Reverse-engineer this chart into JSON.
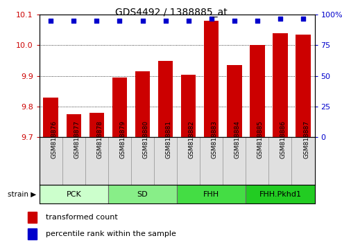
{
  "title": "GDS4492 / 1388885_at",
  "samples": [
    "GSM818876",
    "GSM818877",
    "GSM818878",
    "GSM818879",
    "GSM818880",
    "GSM818881",
    "GSM818882",
    "GSM818883",
    "GSM818884",
    "GSM818885",
    "GSM818886",
    "GSM818887"
  ],
  "red_values": [
    9.83,
    9.775,
    9.78,
    9.895,
    9.915,
    9.95,
    9.905,
    10.08,
    9.935,
    10.0,
    10.04,
    10.035
  ],
  "blue_values": [
    95,
    95,
    95,
    95,
    95,
    95,
    95,
    97,
    95,
    95,
    97,
    97
  ],
  "ylim_left": [
    9.7,
    10.1
  ],
  "ylim_right": [
    0,
    100
  ],
  "yticks_left": [
    9.7,
    9.8,
    9.9,
    10.0,
    10.1
  ],
  "yticks_right": [
    0,
    25,
    50,
    75,
    100
  ],
  "bar_color": "#cc0000",
  "dot_color": "#0000cc",
  "groups": [
    {
      "label": "PCK",
      "start": 0,
      "end": 2,
      "color": "#ccffcc"
    },
    {
      "label": "SD",
      "start": 3,
      "end": 5,
      "color": "#88ee88"
    },
    {
      "label": "FHH",
      "start": 6,
      "end": 8,
      "color": "#44dd44"
    },
    {
      "label": "FHH.Pkhd1",
      "start": 9,
      "end": 11,
      "color": "#22cc22"
    }
  ],
  "strain_label": "strain",
  "legend_red": "transformed count",
  "legend_blue": "percentile rank within the sample",
  "tick_color_left": "#cc0000",
  "tick_color_right": "#0000cc",
  "background_color": "#ffffff",
  "group_colors_shade": [
    "#ccffcc",
    "#88ee88",
    "#44dd44",
    "#22cc22"
  ]
}
